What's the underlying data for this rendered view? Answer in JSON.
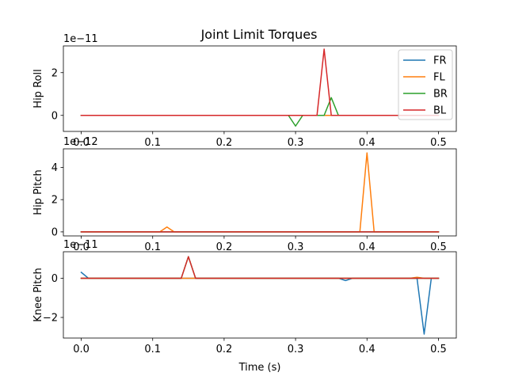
{
  "figure": {
    "title": "Joint Limit Torques"
  },
  "chart_data": [
    {
      "type": "line",
      "ylabel": "Hip Roll",
      "offset_text": "1e−11",
      "xlabel": "",
      "xlim": [
        -0.025,
        0.525
      ],
      "ylim": [
        -0.75,
        3.25
      ],
      "xticks": [
        0.0,
        0.1,
        0.2,
        0.3,
        0.4,
        0.5
      ],
      "xtick_labels": [
        "0.0",
        "0.1",
        "0.2",
        "0.3",
        "0.4",
        "0.5"
      ],
      "yticks": [
        0,
        2
      ],
      "ytick_labels": [
        "0",
        "2"
      ],
      "legend": {
        "placement": "top-right"
      },
      "series": [
        {
          "name": "FR",
          "color": "#1f77b4",
          "x": [
            0.0,
            0.5
          ],
          "y": [
            0,
            0
          ]
        },
        {
          "name": "FL",
          "color": "#ff7f0e",
          "x": [
            0.0,
            0.5
          ],
          "y": [
            0,
            0
          ]
        },
        {
          "name": "BR",
          "color": "#2ca02c",
          "x": [
            0.0,
            0.29,
            0.3,
            0.31,
            0.34,
            0.35,
            0.36,
            0.5
          ],
          "y": [
            0,
            0,
            -0.5,
            0,
            0,
            0.83,
            0,
            0
          ]
        },
        {
          "name": "BL",
          "color": "#d62728",
          "x": [
            0.0,
            0.33,
            0.34,
            0.35,
            0.5
          ],
          "y": [
            0,
            0,
            3.1,
            0,
            0
          ]
        }
      ]
    },
    {
      "type": "line",
      "ylabel": "Hip Pitch",
      "offset_text": "1e−12",
      "xlabel": "",
      "xlim": [
        -0.025,
        0.525
      ],
      "ylim": [
        -0.25,
        5.15
      ],
      "xticks": [
        0.0,
        0.1,
        0.2,
        0.3,
        0.4,
        0.5
      ],
      "xtick_labels": [
        "0.0",
        "0.1",
        "0.2",
        "0.3",
        "0.4",
        "0.5"
      ],
      "yticks": [
        0,
        2,
        4
      ],
      "ytick_labels": [
        "0",
        "2",
        "4"
      ],
      "series": [
        {
          "name": "FR",
          "color": "#1f77b4",
          "x": [
            0.0,
            0.5
          ],
          "y": [
            0,
            0
          ]
        },
        {
          "name": "FL",
          "color": "#ff7f0e",
          "x": [
            0.0,
            0.11,
            0.12,
            0.13,
            0.39,
            0.4,
            0.41,
            0.5
          ],
          "y": [
            0,
            0,
            0.3,
            0,
            0,
            4.9,
            0,
            0
          ]
        },
        {
          "name": "BR",
          "color": "#2ca02c",
          "x": [
            0.0,
            0.5
          ],
          "y": [
            0,
            0
          ]
        },
        {
          "name": "BL",
          "color": "#d62728",
          "x": [
            0.0,
            0.11,
            0.39,
            0.41,
            0.5
          ],
          "y": [
            0,
            0,
            0,
            0,
            0
          ]
        }
      ]
    },
    {
      "type": "line",
      "ylabel": "Knee Pitch",
      "offset_text": "1e−11",
      "xlabel": "Time (s)",
      "xlim": [
        -0.025,
        0.525
      ],
      "ylim": [
        -3.05,
        1.35
      ],
      "xticks": [
        0.0,
        0.1,
        0.2,
        0.3,
        0.4,
        0.5
      ],
      "xtick_labels": [
        "0.0",
        "0.1",
        "0.2",
        "0.3",
        "0.4",
        "0.5"
      ],
      "yticks": [
        -2,
        0
      ],
      "ytick_labels": [
        "−2",
        "0"
      ],
      "series": [
        {
          "name": "FR",
          "color": "#1f77b4",
          "x": [
            0.0,
            0.01,
            0.36,
            0.37,
            0.38,
            0.47,
            0.48,
            0.49,
            0.5
          ],
          "y": [
            0.3,
            0,
            0,
            -0.12,
            0,
            0,
            -2.85,
            0,
            0
          ]
        },
        {
          "name": "FL",
          "color": "#ff7f0e",
          "x": [
            0.0,
            0.46,
            0.47,
            0.48,
            0.5
          ],
          "y": [
            0,
            0,
            0.05,
            0,
            0
          ]
        },
        {
          "name": "BR",
          "color": "#2ca02c",
          "x": [
            0.0,
            0.14,
            0.15,
            0.16,
            0.5
          ],
          "y": [
            0,
            0,
            1.1,
            0,
            0
          ]
        },
        {
          "name": "BL",
          "color": "#d62728",
          "x": [
            0.0,
            0.14,
            0.15,
            0.16,
            0.5
          ],
          "y": [
            0,
            0,
            1.1,
            0,
            0
          ]
        }
      ]
    }
  ]
}
